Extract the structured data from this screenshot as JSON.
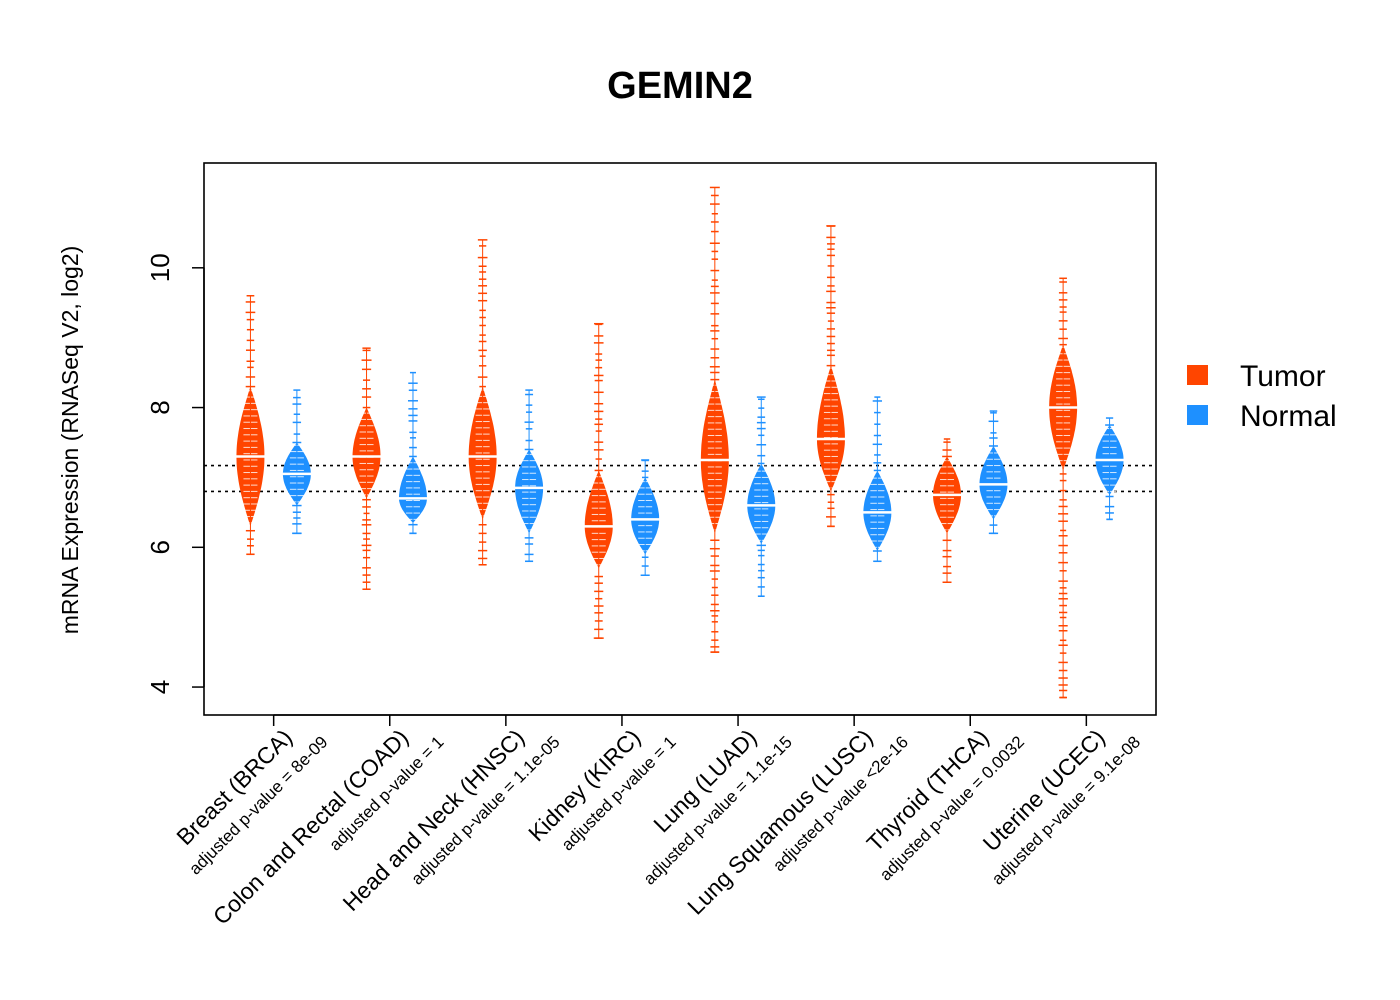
{
  "chart_data": {
    "type": "beanplot",
    "title": "GEMIN2",
    "ylabel": "mRNA Expression (RNASeq V2, log2)",
    "ylim": [
      3.6,
      11.5
    ],
    "yticks": [
      4,
      6,
      8,
      10
    ],
    "reference_lines": [
      6.8,
      7.17
    ],
    "legend": {
      "position": "right",
      "items": [
        {
          "name": "Tumor",
          "color": "#FF4500"
        },
        {
          "name": "Normal",
          "color": "#1E90FF"
        }
      ]
    },
    "categories": [
      {
        "label": "Breast (BRCA)",
        "pvalue": "adjusted p-value = 8e-09",
        "tumor": {
          "median": 7.3,
          "core": [
            6.3,
            8.3
          ],
          "range": [
            5.9,
            9.6
          ]
        },
        "normal": {
          "median": 7.05,
          "core": [
            6.6,
            7.5
          ],
          "range": [
            6.2,
            8.25
          ]
        }
      },
      {
        "label": "Colon and Rectal (COAD)",
        "pvalue": "adjusted p-value = 1",
        "tumor": {
          "median": 7.3,
          "core": [
            6.7,
            8.0
          ],
          "range": [
            5.4,
            8.85
          ]
        },
        "normal": {
          "median": 6.7,
          "core": [
            6.35,
            7.3
          ],
          "range": [
            6.2,
            8.5
          ]
        }
      },
      {
        "label": "Head and Neck (HNSC)",
        "pvalue": "adjusted p-value = 1.1e-05",
        "tumor": {
          "median": 7.3,
          "core": [
            6.4,
            8.3
          ],
          "range": [
            5.75,
            10.4
          ]
        },
        "normal": {
          "median": 6.85,
          "core": [
            6.2,
            7.4
          ],
          "range": [
            5.8,
            8.25
          ]
        }
      },
      {
        "label": "Kidney (KIRC)",
        "pvalue": "adjusted p-value = 1",
        "tumor": {
          "median": 6.3,
          "core": [
            5.7,
            7.1
          ],
          "range": [
            4.7,
            9.2
          ]
        },
        "normal": {
          "median": 6.4,
          "core": [
            5.9,
            7.0
          ],
          "range": [
            5.6,
            7.25
          ]
        }
      },
      {
        "label": "Lung (LUAD)",
        "pvalue": "adjusted p-value = 1.1e-15",
        "tumor": {
          "median": 7.25,
          "core": [
            6.2,
            8.4
          ],
          "range": [
            4.5,
            11.15
          ]
        },
        "normal": {
          "median": 6.6,
          "core": [
            6.05,
            7.2
          ],
          "range": [
            5.3,
            8.15
          ]
        }
      },
      {
        "label": "Lung Squamous (LUSC)",
        "pvalue": "adjusted p-value <2e-16",
        "tumor": {
          "median": 7.55,
          "core": [
            6.8,
            8.6
          ],
          "range": [
            6.3,
            10.6
          ]
        },
        "normal": {
          "median": 6.5,
          "core": [
            5.95,
            7.1
          ],
          "range": [
            5.8,
            8.15
          ]
        }
      },
      {
        "label": "Thyroid (THCA)",
        "pvalue": "adjusted p-value = 0.0032",
        "tumor": {
          "median": 6.75,
          "core": [
            6.2,
            7.3
          ],
          "range": [
            5.5,
            7.55
          ]
        },
        "normal": {
          "median": 6.9,
          "core": [
            6.4,
            7.45
          ],
          "range": [
            6.2,
            7.95
          ]
        }
      },
      {
        "label": "Uterine (UCEC)",
        "pvalue": "adjusted p-value = 9.1e-08",
        "tumor": {
          "median": 8.0,
          "core": [
            7.1,
            8.9
          ],
          "range": [
            3.85,
            9.85
          ]
        },
        "normal": {
          "median": 7.25,
          "core": [
            6.75,
            7.75
          ],
          "range": [
            6.4,
            7.85
          ]
        }
      }
    ]
  }
}
